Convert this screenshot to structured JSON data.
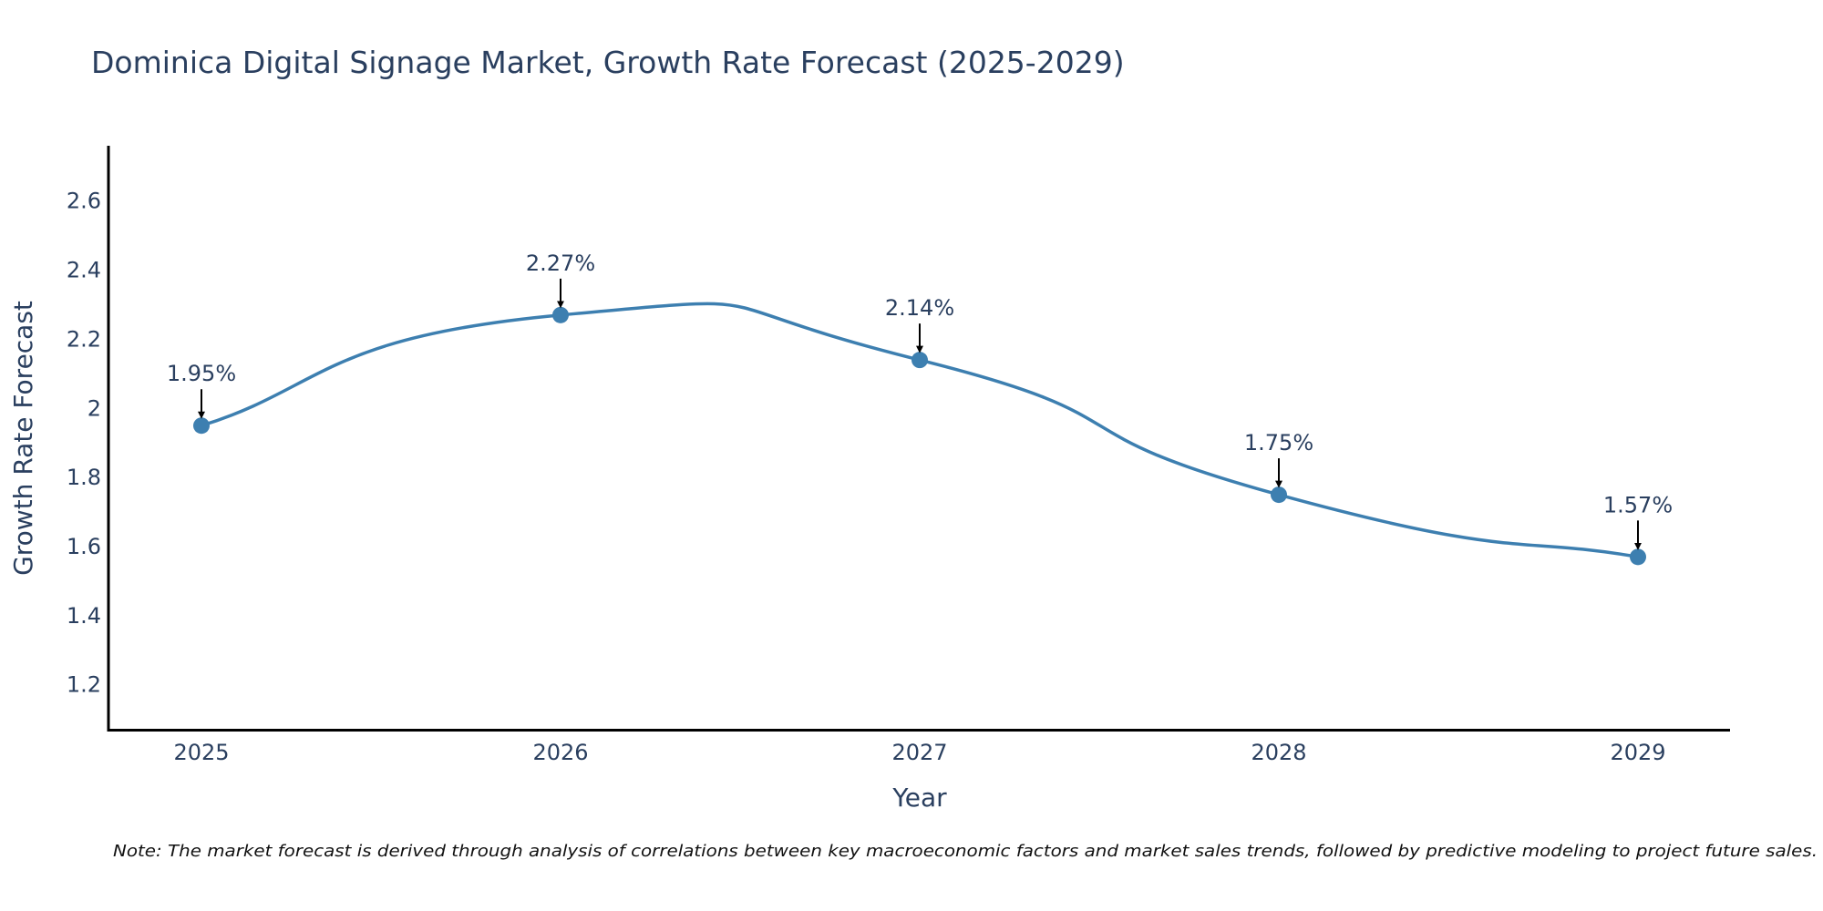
{
  "chart_data": {
    "type": "line",
    "title": "Dominica Digital Signage Market, Growth Rate Forecast (2025-2029)",
    "xlabel": "Year",
    "ylabel": "Growth Rate Forecast",
    "categories": [
      "2025",
      "2026",
      "2027",
      "2028",
      "2029"
    ],
    "series": [
      {
        "name": "Growth Rate Forecast",
        "values": [
          1.95,
          2.27,
          2.14,
          1.75,
          1.57
        ],
        "color": "#3d7fb0"
      }
    ],
    "data_labels": [
      "1.95%",
      "2.27%",
      "2.14%",
      "1.75%",
      "1.57%"
    ],
    "ylim": [
      1.07,
      2.76
    ],
    "yticks": [
      1.2,
      1.4,
      1.6,
      1.8,
      2,
      2.2,
      2.4,
      2.6
    ],
    "ytick_labels": [
      "1.2",
      "1.4",
      "1.6",
      "1.8",
      "2",
      "2.2",
      "2.4",
      "2.6"
    ],
    "grid": false,
    "line_shape": "spline",
    "annotation_arrows": true,
    "arrow_color": "#000000",
    "note": "Note: The market forecast is derived through analysis of correlations between key macroeconomic factors and market sales trends, followed by predictive modeling to project future sales."
  }
}
